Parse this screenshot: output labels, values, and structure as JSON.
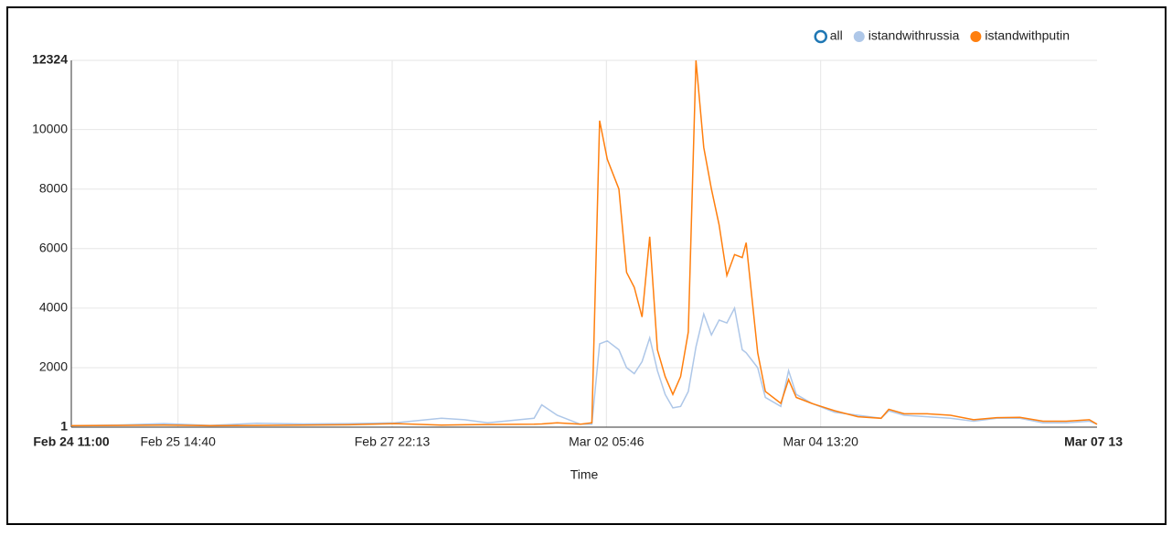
{
  "chart_data": {
    "type": "line",
    "x_label": "Time",
    "x": [
      "Feb 24 11:00",
      "Feb 24 23:00",
      "Feb 25 11:00",
      "Feb 25 23:00",
      "Feb 26 11:00",
      "Feb 26 23:00",
      "Feb 27 11:00",
      "Feb 27 23:00",
      "Feb 28 11:00",
      "Feb 28 17:00",
      "Feb 28 23:00",
      "Mar 01 11:00",
      "Mar 01 13:00",
      "Mar 01 17:00",
      "Mar 01 23:00",
      "Mar 02 02:00",
      "Mar 02 04:00",
      "Mar 02 06:00",
      "Mar 02 09:00",
      "Mar 02 11:00",
      "Mar 02 13:00",
      "Mar 02 15:00",
      "Mar 02 17:00",
      "Mar 02 19:00",
      "Mar 02 21:00",
      "Mar 02 23:00",
      "Mar 03 01:00",
      "Mar 03 03:00",
      "Mar 03 05:00",
      "Mar 03 07:00",
      "Mar 03 09:00",
      "Mar 03 11:00",
      "Mar 03 13:00",
      "Mar 03 15:00",
      "Mar 03 17:00",
      "Mar 03 18:00",
      "Mar 03 21:00",
      "Mar 03 23:00",
      "Mar 04 03:00",
      "Mar 04 05:00",
      "Mar 04 07:00",
      "Mar 04 11:00",
      "Mar 04 17:00",
      "Mar 04 23:00",
      "Mar 05 05:00",
      "Mar 05 07:00",
      "Mar 05 11:00",
      "Mar 05 17:00",
      "Mar 05 23:00",
      "Mar 06 05:00",
      "Mar 06 11:00",
      "Mar 06 17:00",
      "Mar 06 23:00",
      "Mar 07 05:00",
      "Mar 07 11:00",
      "Mar 07 13:00"
    ],
    "series": [
      {
        "name": "all",
        "color": "#1f77b4",
        "visible": false
      },
      {
        "name": "istandwithrussia",
        "color": "#aec7e8",
        "visible": true,
        "values": [
          50,
          70,
          120,
          60,
          130,
          110,
          120,
          150,
          300,
          250,
          150,
          300,
          750,
          400,
          100,
          100,
          2800,
          2900,
          2600,
          2000,
          1800,
          2200,
          3000,
          1900,
          1100,
          650,
          700,
          1200,
          2700,
          3800,
          3100,
          3600,
          3500,
          4000,
          2600,
          2500,
          2000,
          1000,
          700,
          1900,
          1100,
          800,
          500,
          400,
          300,
          550,
          400,
          350,
          300,
          200,
          300,
          300,
          150,
          150,
          200,
          100
        ]
      },
      {
        "name": "istandwithputin",
        "color": "#ff7f0e",
        "visible": true,
        "values": [
          50,
          60,
          70,
          50,
          60,
          70,
          80,
          120,
          70,
          80,
          90,
          100,
          110,
          150,
          100,
          150,
          10300,
          9000,
          8000,
          5200,
          4700,
          3700,
          6400,
          2600,
          1700,
          1100,
          1700,
          3200,
          12324,
          9400,
          8000,
          6800,
          5100,
          5800,
          5700,
          6200,
          2500,
          1200,
          800,
          1600,
          1000,
          800,
          550,
          350,
          300,
          600,
          450,
          450,
          400,
          250,
          320,
          330,
          200,
          200,
          250,
          100
        ]
      }
    ],
    "xlim": [
      "Feb 24 11:00",
      "Mar 07 13"
    ],
    "xticks": [
      "Feb 25 14:40",
      "Feb 27 22:13",
      "Mar 02 05:46",
      "Mar 04 13:20"
    ],
    "ylim": [
      1,
      12324
    ],
    "yticks": [
      1,
      2000,
      4000,
      6000,
      8000,
      10000,
      12324
    ],
    "grid": true,
    "legend": "top-right"
  }
}
